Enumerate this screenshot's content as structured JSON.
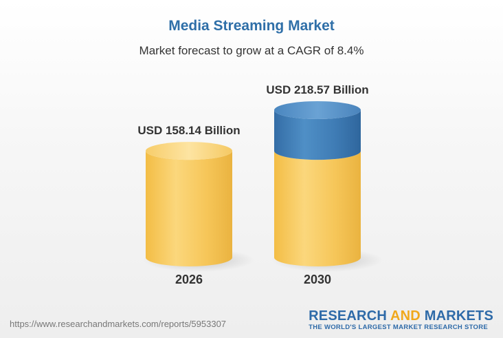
{
  "title": "Media Streaming Market",
  "subtitle": "Market forecast to grow at a CAGR of 8.4%",
  "footer": {
    "url": "https://www.researchandmarkets.com/reports/5953307",
    "brand_word1": "RESEARCH",
    "brand_word2": "AND",
    "brand_word3": "MARKETS",
    "brand_tagline": "THE WORLD'S LARGEST MARKET RESEARCH STORE"
  },
  "colors": {
    "base": "#f5c453",
    "growth": "#3b78b0",
    "title": "#2f6fa8"
  },
  "chart_data": {
    "type": "bar",
    "categories": [
      "2026",
      "2030"
    ],
    "values": [
      158.14,
      218.57
    ],
    "data_labels": [
      "USD 158.14 Billion",
      "USD 218.57 Billion"
    ],
    "unit": "USD Billion",
    "cagr": "8.4%",
    "legend": "none",
    "grid": false
  }
}
